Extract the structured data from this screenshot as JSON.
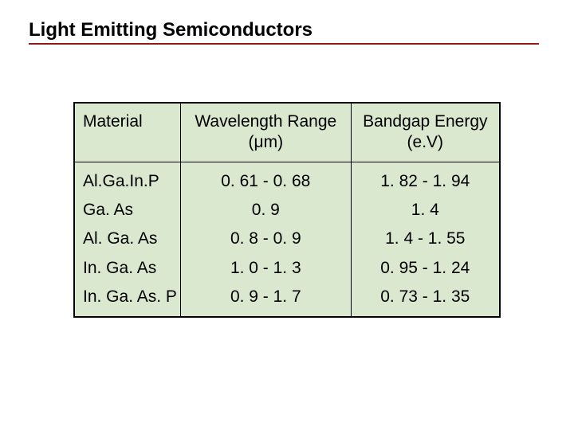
{
  "title": "Light Emitting Semiconductors",
  "table": {
    "columns": [
      {
        "key": "material",
        "header": "Material",
        "align": "left",
        "width_pct": 25
      },
      {
        "key": "wavelength",
        "header": "Wavelength Range\n(μm)",
        "align": "center",
        "width_pct": 40
      },
      {
        "key": "bandgap",
        "header": "Bandgap Energy\n(e.V)",
        "align": "center",
        "width_pct": 35
      }
    ],
    "rows": [
      {
        "material": "Al.Ga.In.P",
        "wavelength": "0. 61 - 0. 68",
        "bandgap": "1. 82 - 1. 94"
      },
      {
        "material": "Ga. As",
        "wavelength": "0. 9",
        "bandgap": "1. 4"
      },
      {
        "material": "Al. Ga. As",
        "wavelength": "0. 8 - 0. 9",
        "bandgap": "1. 4 - 1. 55"
      },
      {
        "material": "In. Ga. As",
        "wavelength": "1. 0 - 1. 3",
        "bandgap": "0. 95 - 1. 24"
      },
      {
        "material": "In. Ga. As. P",
        "wavelength": "0. 9 - 1. 7",
        "bandgap": "0. 73 - 1. 35"
      }
    ],
    "background_color": "#d9e8cf",
    "border_color": "#000000",
    "header_fontsize": 21,
    "body_fontsize": 21,
    "title_fontsize": 24,
    "title_underline_color": "#8b1a1a"
  }
}
